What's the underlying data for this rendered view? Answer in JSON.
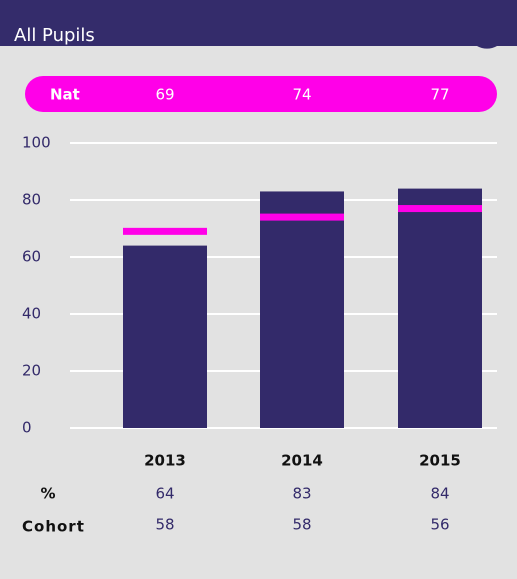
{
  "chart_data": {
    "type": "bar",
    "title": "All Pupils",
    "categories": [
      "2013",
      "2014",
      "2015"
    ],
    "series": [
      {
        "name": "%",
        "color": "#332a6a",
        "values": [
          64,
          83,
          84
        ]
      }
    ],
    "national": {
      "name": "Nat",
      "color": "#ff00e8",
      "values": [
        69,
        74,
        77
      ]
    },
    "cohort": {
      "name": "Cohort",
      "values": [
        58,
        58,
        56
      ]
    },
    "ylim": [
      0,
      100
    ],
    "yticks": [
      0,
      20,
      40,
      60,
      80,
      100
    ],
    "grid": true
  }
}
